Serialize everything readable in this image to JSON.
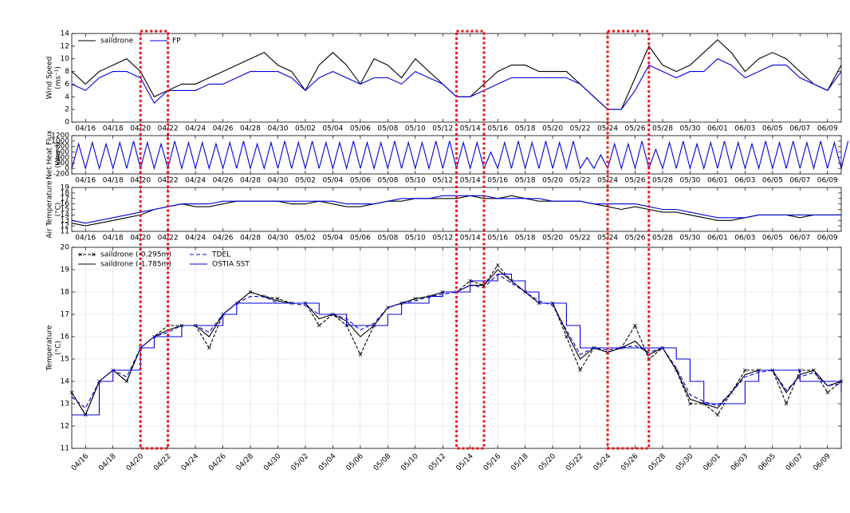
{
  "chart_data": [
    {
      "type": "line",
      "ylabel": [
        "Wind Speed",
        "(ms⁻¹)"
      ],
      "xlim": [
        "04/15",
        "06/10"
      ],
      "ylim": [
        0,
        14
      ],
      "yticks": [
        0,
        2,
        4,
        6,
        8,
        10,
        12,
        14
      ],
      "grid": false,
      "legend": "upper left",
      "xticks": [
        "04/16",
        "04/18",
        "04/20",
        "04/22",
        "04/24",
        "04/26",
        "04/28",
        "04/30",
        "05/02",
        "05/04",
        "05/06",
        "05/08",
        "05/10",
        "05/12",
        "05/14",
        "05/16",
        "05/18",
        "05/20",
        "05/22",
        "05/24",
        "05/26",
        "05/28",
        "05/30",
        "06/01",
        "06/03",
        "06/05",
        "06/07",
        "06/09"
      ],
      "x": [
        "04/15",
        "04/16",
        "04/17",
        "04/18",
        "04/19",
        "04/20",
        "04/21",
        "04/22",
        "04/23",
        "04/24",
        "04/25",
        "04/26",
        "04/27",
        "04/28",
        "04/29",
        "04/30",
        "05/01",
        "05/02",
        "05/03",
        "05/04",
        "05/05",
        "05/06",
        "05/07",
        "05/08",
        "05/09",
        "05/10",
        "05/11",
        "05/12",
        "05/13",
        "05/14",
        "05/15",
        "05/16",
        "05/17",
        "05/18",
        "05/19",
        "05/20",
        "05/21",
        "05/22",
        "05/23",
        "05/24",
        "05/25",
        "05/26",
        "05/27",
        "05/28",
        "05/29",
        "05/30",
        "05/31",
        "06/01",
        "06/02",
        "06/03",
        "06/04",
        "06/05",
        "06/06",
        "06/07",
        "06/08",
        "06/09",
        "06/10"
      ],
      "series": [
        {
          "name": "saildrone",
          "color": "#000000",
          "values": [
            8,
            6,
            8,
            9,
            10,
            8,
            4,
            5,
            6,
            6,
            7,
            8,
            9,
            10,
            11,
            9,
            8,
            5,
            9,
            11,
            9,
            6,
            10,
            9,
            7,
            10,
            8,
            6,
            4,
            4,
            6,
            8,
            9,
            9,
            8,
            8,
            8,
            6,
            4,
            2,
            2,
            7,
            12,
            9,
            8,
            9,
            11,
            13,
            11,
            8,
            10,
            11,
            10,
            8,
            6,
            5,
            9
          ]
        },
        {
          "name": "FP",
          "color": "#0000dd",
          "values": [
            6,
            5,
            7,
            8,
            8,
            7,
            3,
            5,
            5,
            5,
            6,
            6,
            7,
            8,
            8,
            8,
            7,
            5,
            7,
            8,
            7,
            6,
            7,
            7,
            6,
            8,
            7,
            6,
            4,
            4,
            5,
            6,
            7,
            7,
            7,
            7,
            7,
            6,
            4,
            2,
            2,
            5,
            9,
            8,
            7,
            8,
            8,
            10,
            9,
            7,
            8,
            9,
            9,
            7,
            6,
            5,
            8
          ]
        }
      ]
    },
    {
      "type": "line",
      "ylabel": [
        "Net Heat Flux",
        "(Wm⁻²)"
      ],
      "xlim": [
        "04/15",
        "06/10"
      ],
      "ylim": [
        -200,
        1200
      ],
      "yticks": [
        -200,
        0,
        200,
        400,
        600,
        800,
        1000,
        1200
      ],
      "grid": false,
      "xticks": [
        "04/16",
        "04/18",
        "04/20",
        "04/22",
        "04/24",
        "04/26",
        "04/28",
        "04/30",
        "05/02",
        "05/04",
        "05/06",
        "05/08",
        "05/10",
        "05/12",
        "05/14",
        "05/16",
        "05/18",
        "05/20",
        "05/22",
        "05/24",
        "05/26",
        "05/28",
        "05/30",
        "06/01",
        "06/03",
        "06/05",
        "06/07",
        "06/09"
      ],
      "x": [
        "04/15",
        "04/15",
        "04/16",
        "04/16",
        "04/17",
        "04/17",
        "04/18",
        "04/18",
        "04/19",
        "04/19",
        "04/20",
        "04/20",
        "04/21",
        "04/21",
        "04/22",
        "04/22",
        "04/23",
        "04/23",
        "04/24",
        "04/24",
        "04/25",
        "04/25",
        "04/26",
        "04/26",
        "04/27",
        "04/27",
        "04/28",
        "04/28",
        "04/29",
        "04/29",
        "04/30",
        "04/30",
        "05/01",
        "05/01",
        "05/02",
        "05/02",
        "05/03",
        "05/03",
        "05/04",
        "05/04",
        "05/05",
        "05/05",
        "05/06",
        "05/06",
        "05/07",
        "05/07",
        "05/08",
        "05/08",
        "05/09",
        "05/09",
        "05/10",
        "05/10",
        "05/11",
        "05/11",
        "05/12",
        "05/12",
        "05/13",
        "05/13",
        "05/14",
        "05/14",
        "05/15",
        "05/15",
        "05/16",
        "05/16",
        "05/17",
        "05/17",
        "05/18",
        "05/18",
        "05/19",
        "05/19",
        "05/20",
        "05/20",
        "05/21",
        "05/21",
        "05/22",
        "05/22",
        "05/23",
        "05/23",
        "05/24",
        "05/24",
        "05/25",
        "05/25",
        "05/26",
        "05/26",
        "05/27",
        "05/27",
        "05/28",
        "05/28",
        "05/29",
        "05/29",
        "05/30",
        "05/30",
        "05/31",
        "05/31",
        "06/01",
        "06/01",
        "06/02",
        "06/02",
        "06/03",
        "06/03",
        "06/04",
        "06/04",
        "06/05",
        "06/05",
        "06/06",
        "06/06",
        "06/07",
        "06/07",
        "06/08",
        "06/08",
        "06/09",
        "06/09",
        "06/10",
        "06/10"
      ],
      "series": [
        {
          "color": "#0000dd",
          "values": [
            0,
            900,
            0,
            950,
            0,
            900,
            0,
            950,
            0,
            1000,
            0,
            950,
            0,
            900,
            0,
            1000,
            0,
            950,
            0,
            950,
            0,
            900,
            0,
            950,
            0,
            1000,
            0,
            900,
            0,
            950,
            0,
            1000,
            0,
            950,
            0,
            1000,
            0,
            950,
            0,
            950,
            0,
            1000,
            0,
            950,
            0,
            950,
            0,
            1000,
            0,
            950,
            0,
            950,
            0,
            1000,
            0,
            1000,
            0,
            950,
            0,
            950,
            0,
            600,
            0,
            950,
            0,
            1000,
            0,
            950,
            0,
            1000,
            0,
            950,
            0,
            1000,
            0,
            400,
            0,
            500,
            0,
            900,
            0,
            900,
            0,
            1000,
            0,
            700,
            0,
            950,
            0,
            1000,
            0,
            900,
            0,
            950,
            0,
            1000,
            0,
            950,
            0,
            900,
            0,
            1000,
            0,
            950,
            0,
            1000,
            0,
            950,
            0,
            1000,
            0,
            950,
            0,
            1000
          ]
        }
      ]
    },
    {
      "type": "line",
      "ylabel": [
        "Air Temperature",
        "(°C)"
      ],
      "xlim": [
        "04/15",
        "06/10"
      ],
      "ylim": [
        11,
        19
      ],
      "yticks": [
        11,
        12,
        13,
        14,
        15,
        16,
        17,
        18,
        19
      ],
      "grid": false,
      "xticks": [
        "04/16",
        "04/18",
        "04/20",
        "04/22",
        "04/24",
        "04/26",
        "04/28",
        "04/30",
        "05/02",
        "05/04",
        "05/06",
        "05/08",
        "05/10",
        "05/12",
        "05/14",
        "05/16",
        "05/18",
        "05/20",
        "05/22",
        "05/24",
        "05/26",
        "05/28",
        "05/30",
        "06/01",
        "06/03",
        "06/05",
        "06/07",
        "06/09"
      ],
      "x": [
        "04/15",
        "04/16",
        "04/17",
        "04/18",
        "04/19",
        "04/20",
        "04/21",
        "04/22",
        "04/23",
        "04/24",
        "04/25",
        "04/26",
        "04/27",
        "04/28",
        "04/29",
        "04/30",
        "05/01",
        "05/02",
        "05/03",
        "05/04",
        "05/05",
        "05/06",
        "05/07",
        "05/08",
        "05/09",
        "05/10",
        "05/11",
        "05/12",
        "05/13",
        "05/14",
        "05/15",
        "05/16",
        "05/17",
        "05/18",
        "05/19",
        "05/20",
        "05/21",
        "05/22",
        "05/23",
        "05/24",
        "05/25",
        "05/26",
        "05/27",
        "05/28",
        "05/29",
        "05/30",
        "05/31",
        "06/01",
        "06/02",
        "06/03",
        "06/04",
        "06/05",
        "06/06",
        "06/07",
        "06/08",
        "06/09",
        "06/10"
      ],
      "series": [
        {
          "color": "#000000",
          "values": [
            12.5,
            12,
            12.5,
            13,
            13.5,
            14,
            15,
            15.5,
            16,
            15.5,
            15.5,
            16,
            16.5,
            16.5,
            16.5,
            16.5,
            16,
            16,
            16.5,
            16,
            15.5,
            15.5,
            16,
            16.5,
            16.5,
            17,
            17,
            17,
            17,
            17.5,
            17,
            17,
            17.5,
            17,
            16.5,
            16.5,
            16.5,
            16.5,
            16,
            15.5,
            15,
            15.5,
            15,
            14.5,
            14.5,
            14,
            13.5,
            13,
            13,
            13.5,
            14,
            14,
            14,
            13.5,
            14,
            14,
            14
          ]
        },
        {
          "color": "#0000dd",
          "values": [
            13,
            12.5,
            13,
            13.5,
            14,
            14.5,
            15,
            15.5,
            16,
            16,
            16,
            16.5,
            16.5,
            16.5,
            16.5,
            16.5,
            16.5,
            16.5,
            16.5,
            16.5,
            16,
            16,
            16,
            16.5,
            17,
            17,
            17,
            17.5,
            17.5,
            17.5,
            17.5,
            17,
            17,
            17,
            17,
            16.5,
            16.5,
            16.5,
            16,
            16,
            16,
            16,
            15.5,
            15,
            15,
            14.5,
            14,
            13.5,
            13.5,
            13.5,
            14,
            14,
            14,
            14,
            14,
            14,
            14
          ]
        }
      ]
    },
    {
      "type": "line",
      "ylabel": [
        "Temperature",
        "(°C)"
      ],
      "xlim": [
        "04/15",
        "06/10"
      ],
      "ylim": [
        11,
        20
      ],
      "yticks": [
        11,
        12,
        13,
        14,
        15,
        16,
        17,
        18,
        19,
        20
      ],
      "grid": true,
      "legend": "upper left",
      "rotate_xticks": true,
      "xticks": [
        "04/16",
        "04/18",
        "04/20",
        "04/22",
        "04/24",
        "04/26",
        "04/28",
        "04/30",
        "05/02",
        "05/04",
        "05/06",
        "05/08",
        "05/10",
        "05/12",
        "05/14",
        "05/16",
        "05/18",
        "05/20",
        "05/22",
        "05/24",
        "05/26",
        "05/28",
        "05/30",
        "06/01",
        "06/03",
        "06/05",
        "06/07",
        "06/09"
      ],
      "x": [
        "04/15",
        "04/16",
        "04/17",
        "04/18",
        "04/19",
        "04/20",
        "04/21",
        "04/22",
        "04/23",
        "04/24",
        "04/25",
        "04/26",
        "04/27",
        "04/28",
        "04/29",
        "04/30",
        "05/01",
        "05/02",
        "05/03",
        "05/04",
        "05/05",
        "05/06",
        "05/07",
        "05/08",
        "05/09",
        "05/10",
        "05/11",
        "05/12",
        "05/13",
        "05/14",
        "05/15",
        "05/16",
        "05/17",
        "05/18",
        "05/19",
        "05/20",
        "05/21",
        "05/22",
        "05/23",
        "05/24",
        "05/25",
        "05/26",
        "05/27",
        "05/28",
        "05/29",
        "05/30",
        "05/31",
        "06/01",
        "06/02",
        "06/03",
        "06/04",
        "06/05",
        "06/06",
        "06/07",
        "06/08",
        "06/09",
        "06/10"
      ],
      "series": [
        {
          "name": "saildrone (-0.295m)",
          "color": "#000000",
          "marker": "x",
          "dash": "4,2",
          "values": [
            13.5,
            12.5,
            14,
            14.5,
            14,
            15.5,
            16,
            16.5,
            16.5,
            16.5,
            15.5,
            17,
            17.5,
            18,
            17.8,
            17.7,
            17.5,
            17.5,
            16.5,
            17,
            16.5,
            15.2,
            16.5,
            17.3,
            17.5,
            17.7,
            17.8,
            18,
            18,
            18.5,
            18.3,
            19.2,
            18.5,
            18,
            17.5,
            17.5,
            16,
            14.5,
            15.5,
            15.3,
            15.5,
            16.5,
            15,
            15.5,
            14.5,
            13,
            13,
            12.5,
            13.5,
            14.5,
            14.5,
            14.5,
            13,
            14.5,
            14.5,
            13.5,
            14
          ]
        },
        {
          "name": "saildrone (-1.785m)",
          "color": "#000000",
          "values": [
            13.5,
            12.5,
            14,
            14.5,
            14,
            15.5,
            16,
            16.3,
            16.5,
            16.5,
            16,
            17,
            17.5,
            18,
            17.8,
            17.6,
            17.5,
            17.5,
            16.8,
            17,
            16.7,
            16,
            16.5,
            17.3,
            17.5,
            17.7,
            17.8,
            18,
            18,
            18.3,
            18.3,
            19,
            18.5,
            18,
            17.5,
            17.5,
            16.2,
            15,
            15.5,
            15.3,
            15.5,
            15.8,
            15.2,
            15.5,
            14.5,
            13.2,
            13,
            12.8,
            13.5,
            14.3,
            14.5,
            14.5,
            13.5,
            14.3,
            14.5,
            13.8,
            14
          ]
        },
        {
          "name": "TDEL",
          "color": "#0000dd",
          "dash": "5,3",
          "values": [
            13.3,
            12.8,
            14,
            14.5,
            14.2,
            15.5,
            16,
            16.2,
            16.5,
            16.5,
            16.2,
            17,
            17.5,
            17.8,
            17.8,
            17.5,
            17.5,
            17.4,
            17,
            17,
            16.8,
            16.3,
            16.6,
            17.3,
            17.5,
            17.6,
            17.8,
            17.9,
            18,
            18.3,
            18.2,
            18.8,
            18.4,
            18,
            17.6,
            17.4,
            16.3,
            15.2,
            15.5,
            15.4,
            15.5,
            15.6,
            15.3,
            15.5,
            14.6,
            13.4,
            13.1,
            12.9,
            13.5,
            14.2,
            14.4,
            14.5,
            13.6,
            14.2,
            14.4,
            13.8,
            13.9
          ]
        },
        {
          "name": "OSTIA SST",
          "color": "#0000dd",
          "step": true,
          "values": [
            12.5,
            12.5,
            14,
            14.5,
            14.5,
            15.5,
            16,
            16,
            16.5,
            16.5,
            16.5,
            17,
            17.5,
            17.5,
            17.5,
            17.5,
            17.5,
            17.5,
            17,
            17,
            16.5,
            16.5,
            16.5,
            17,
            17.5,
            17.5,
            17.8,
            18,
            18,
            18.5,
            18.5,
            18.8,
            18.5,
            18,
            17.5,
            17.5,
            16.5,
            15.5,
            15.5,
            15.5,
            15.5,
            15.5,
            15.5,
            15.5,
            15,
            14,
            13,
            13,
            13,
            14,
            14.5,
            14.5,
            14.5,
            14,
            14,
            14,
            13.5
          ]
        }
      ]
    }
  ],
  "highlights": [
    {
      "start": "04/20",
      "end": "04/22"
    },
    {
      "start": "05/13",
      "end": "05/15"
    },
    {
      "start": "05/24",
      "end": "05/27"
    }
  ],
  "highlight_color": "#ee1111"
}
